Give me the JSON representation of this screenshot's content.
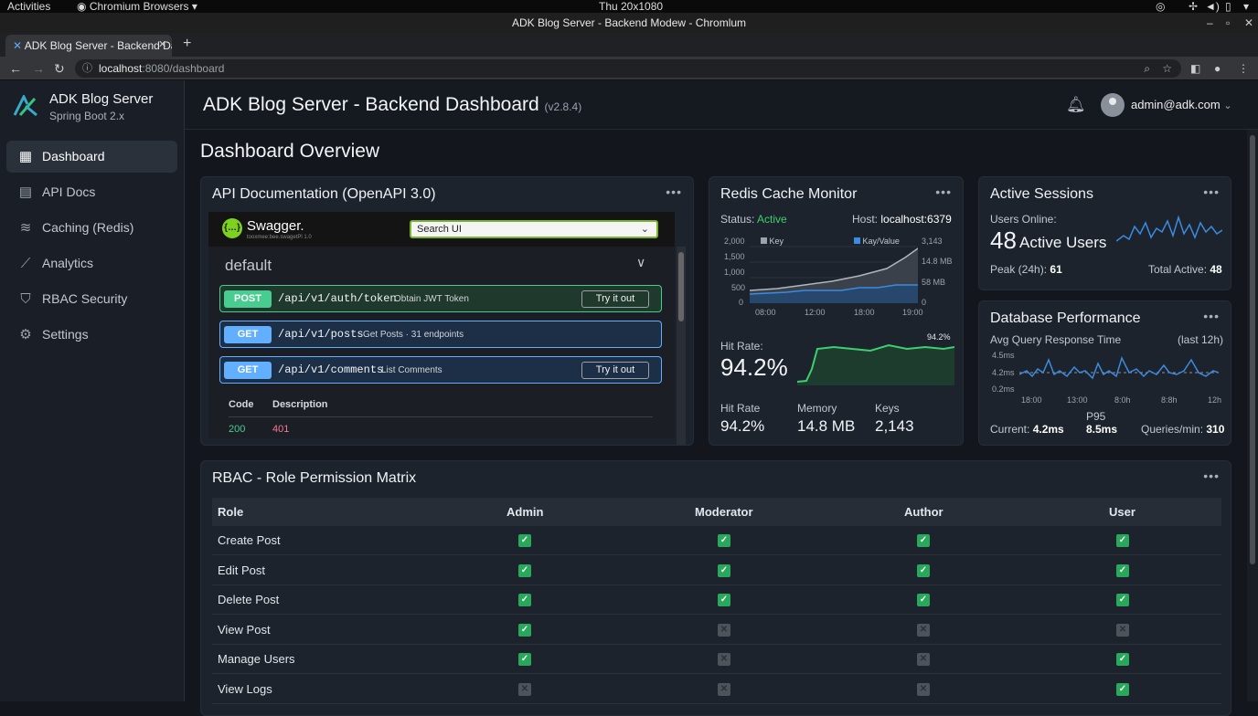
{
  "os": {
    "activities": "Activities",
    "app_menu": "Chromium Browsers",
    "clock": "Thu 20x1080"
  },
  "window": {
    "title": "ADK Blog Server - Backend Modew - Chromlum"
  },
  "browser": {
    "tab_title": "ADK Blog Server - Backend Dashboard",
    "url_host": "localhost",
    "url_rest": ":8080/dashboard"
  },
  "brand": {
    "name": "ADK Blog Server",
    "subtitle": "Spring Boot 2.x"
  },
  "sidebar": {
    "items": [
      {
        "label": "Dashboard",
        "icon": "grid-icon",
        "glyph": "▦"
      },
      {
        "label": "API Docs",
        "icon": "document-icon",
        "glyph": "▤"
      },
      {
        "label": "Caching (Redis)",
        "icon": "layers-icon",
        "glyph": "≋"
      },
      {
        "label": "Analytics",
        "icon": "chart-line-icon",
        "glyph": "⟋"
      },
      {
        "label": "RBAC Security",
        "icon": "shield-icon",
        "glyph": "⛉"
      },
      {
        "label": "Settings",
        "icon": "gear-icon",
        "glyph": "⚙"
      }
    ]
  },
  "header": {
    "title": "ADK Blog Server - Backend Dashboard",
    "version": "(v2.8.4)",
    "user": "admin@adk.com"
  },
  "page": {
    "title": "Dashboard Overview"
  },
  "api_docs": {
    "title": "API Documentation (OpenAPI 3.0)",
    "swagger_name": "Swagger.",
    "swagger_sub": "tooxmee:bee.swagetPl 1.0",
    "search_value": "Search UI",
    "section": "default",
    "operations": [
      {
        "method": "POST",
        "path": "/api/v1/auth/token",
        "desc": "Obtain JWT Token",
        "try": "Try it out",
        "color": "#49cc90"
      },
      {
        "method": "GET",
        "path": "/api/v1/posts",
        "desc": "Get Posts · 31 endpoints",
        "try": "",
        "color": "#61affe"
      },
      {
        "method": "GET",
        "path": "/api/v1/comments",
        "desc": "List Comments",
        "try": "Try it out",
        "color": "#61affe"
      }
    ],
    "resp_head": [
      "Code",
      "Description"
    ],
    "resp_row": [
      "200",
      "401"
    ]
  },
  "redis": {
    "title": "Redis Cache Monitor",
    "status_label": "Status:",
    "status_value": "Active",
    "host_label": "Host:",
    "host_value": "localhost:6379",
    "legend": [
      "Key",
      "Kay/Value"
    ],
    "y_left": [
      "2,000",
      "1,500",
      "1,000",
      "500",
      "0"
    ],
    "y_right": [
      "3,143",
      "14.8 MB",
      "58 MB",
      "0"
    ],
    "x_ticks": [
      "08:00",
      "12:00",
      "18:00",
      "19:00"
    ],
    "hit_rate_label": "Hit Rate:",
    "hit_rate_value": "94.2%",
    "spark_label": "94.2%",
    "stats": [
      {
        "label": "Hit Rate",
        "value": "94.2%"
      },
      {
        "label": "Memory",
        "value": "14.8 MB"
      },
      {
        "label": "Keys",
        "value": "2,143"
      }
    ]
  },
  "sessions": {
    "title": "Active Sessions",
    "online_label": "Users Online:",
    "count": "48",
    "count_label": "Active Users",
    "peak_label": "Peak (24h):",
    "peak_value": "61",
    "total_label": "Total Active:",
    "total_value": "48"
  },
  "database": {
    "title": "Database Performance",
    "subtitle": "Avg Query Response Time",
    "range": "(last 12h)",
    "y_ticks": [
      "4.5ms",
      "4.2ms",
      "0.2ms"
    ],
    "x_ticks": [
      "18:00",
      "13:00",
      "8:0h",
      "8:8h",
      "12h"
    ],
    "current_label": "Current:",
    "current_value": "4.2ms",
    "p95_label": "P95",
    "p95_value": "8.5ms",
    "qpm_label": "Queries/min:",
    "qpm_value": "310"
  },
  "rbac": {
    "title": "RBAC - Role Permission Matrix",
    "columns": [
      "Role",
      "Admin",
      "Moderator",
      "Author",
      "User"
    ],
    "rows": [
      {
        "name": "Create Post",
        "perms": [
          true,
          true,
          true,
          true
        ]
      },
      {
        "name": "Edit Post",
        "perms": [
          true,
          true,
          true,
          true
        ]
      },
      {
        "name": "Delete Post",
        "perms": [
          true,
          true,
          true,
          true
        ]
      },
      {
        "name": "View Post",
        "perms": [
          true,
          false,
          false,
          false
        ]
      },
      {
        "name": "Manage Users",
        "perms": [
          true,
          false,
          false,
          true
        ]
      },
      {
        "name": "View Logs",
        "perms": [
          false,
          false,
          false,
          true
        ]
      }
    ]
  },
  "colors": {
    "accent": "#2da44e",
    "active_status": "#3ecf6e",
    "chart_blue": "#3b8be0",
    "card_bg": "#1d232c"
  }
}
